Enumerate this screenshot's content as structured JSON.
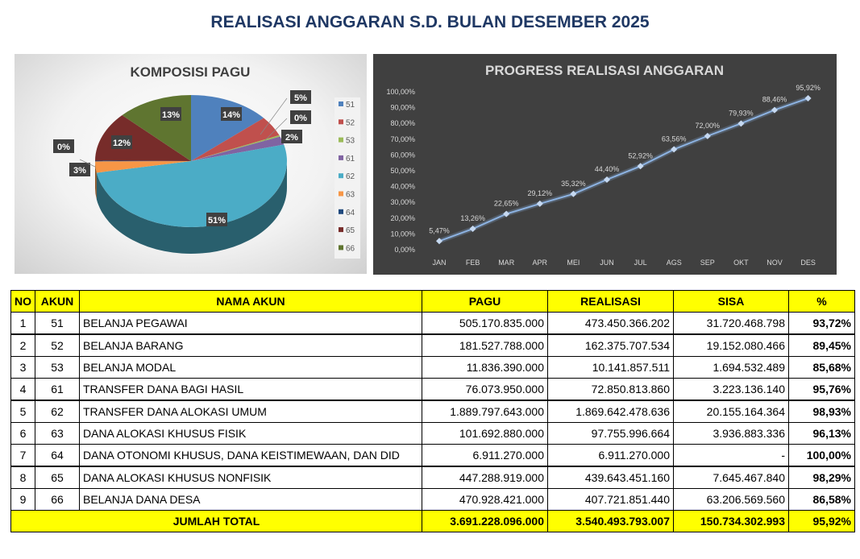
{
  "title": "REALISASI ANGGARAN S.D. BULAN DESEMBER 2025",
  "chart_data": [
    {
      "type": "pie",
      "title": "KOMPOSISI PAGU",
      "legend_position": "right",
      "categories": [
        "51",
        "52",
        "53",
        "61",
        "62",
        "63",
        "64",
        "65",
        "66"
      ],
      "values": [
        505170835000,
        181527788000,
        11836390000,
        76073950000,
        1889797643000,
        101692880000,
        6911270000,
        447288919000,
        470928421000
      ],
      "data_labels": [
        "14%",
        "5%",
        "0%",
        "2%",
        "51%",
        "3%",
        "0%",
        "12%",
        "13%"
      ],
      "colors": [
        "#4f81bd",
        "#c0504d",
        "#9bbb59",
        "#8064a2",
        "#4bacc6",
        "#f79646",
        "#1f497d",
        "#772c2a",
        "#5f7530"
      ]
    },
    {
      "type": "line",
      "title": "PROGRESS REALISASI ANGGARAN",
      "categories": [
        "JAN",
        "FEB",
        "MAR",
        "APR",
        "MEI",
        "JUN",
        "JUL",
        "AGS",
        "SEP",
        "OKT",
        "NOV",
        "DES"
      ],
      "values": [
        5.47,
        13.26,
        22.65,
        29.12,
        35.32,
        44.4,
        52.92,
        63.56,
        72.0,
        79.93,
        88.46,
        95.92
      ],
      "data_labels": [
        "5,47%",
        "13,26%",
        "22,65%",
        "29,12%",
        "35,32%",
        "44,40%",
        "52,92%",
        "63,56%",
        "72,00%",
        "79,93%",
        "88,46%",
        "95,92%"
      ],
      "ylim": [
        0,
        100
      ],
      "yticks": [
        "0,00%",
        "10,00%",
        "20,00%",
        "30,00%",
        "40,00%",
        "50,00%",
        "60,00%",
        "70,00%",
        "80,00%",
        "90,00%",
        "100,00%"
      ],
      "color": "#8db3e2"
    }
  ],
  "table": {
    "headers": [
      "NO",
      "AKUN",
      "NAMA AKUN",
      "PAGU",
      "REALISASI",
      "SISA",
      "%"
    ],
    "rows": [
      [
        "1",
        "51",
        "BELANJA PEGAWAI",
        "505.170.835.000",
        "473.450.366.202",
        "31.720.468.798",
        "93,72%"
      ],
      [
        "2",
        "52",
        "BELANJA BARANG",
        "181.527.788.000",
        "162.375.707.534",
        "19.152.080.466",
        "89,45%"
      ],
      [
        "3",
        "53",
        "BELANJA MODAL",
        "11.836.390.000",
        "10.141.857.511",
        "1.694.532.489",
        "85,68%"
      ],
      [
        "4",
        "61",
        "TRANSFER DANA BAGI HASIL",
        "76.073.950.000",
        "72.850.813.860",
        "3.223.136.140",
        "95,76%"
      ],
      [
        "5",
        "62",
        "TRANSFER DANA ALOKASI UMUM",
        "1.889.797.643.000",
        "1.869.642.478.636",
        "20.155.164.364",
        "98,93%"
      ],
      [
        "6",
        "63",
        "DANA ALOKASI KHUSUS FISIK",
        "101.692.880.000",
        "97.755.996.664",
        "3.936.883.336",
        "96,13%"
      ],
      [
        "7",
        "64",
        "DANA OTONOMI KHUSUS, DANA KEISTIMEWAAN, DAN DID",
        "6.911.270.000",
        "6.911.270.000",
        "-",
        "100,00%"
      ],
      [
        "8",
        "65",
        "DANA ALOKASI KHUSUS NONFISIK",
        "447.288.919.000",
        "439.643.451.160",
        "7.645.467.840",
        "98,29%"
      ],
      [
        "9",
        "66",
        "BELANJA DANA DESA",
        "470.928.421.000",
        "407.721.851.440",
        "63.206.569.560",
        "86,58%"
      ]
    ],
    "total": {
      "label": "JUMLAH TOTAL",
      "pagu": "3.691.228.096.000",
      "realisasi": "3.540.493.793.007",
      "sisa": "150.734.302.993",
      "persen": "95,92%"
    }
  }
}
